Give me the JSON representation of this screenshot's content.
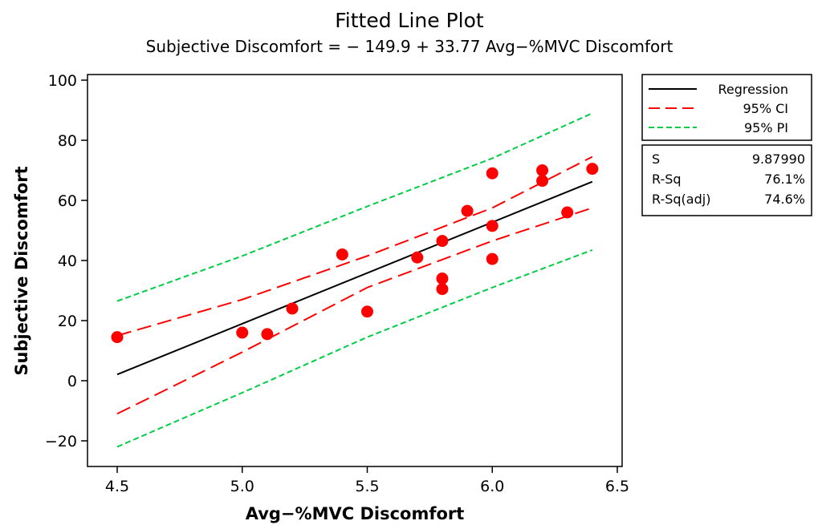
{
  "chart_data": {
    "type": "scatter",
    "title": "Fitted Line Plot",
    "subtitle": "Subjective Discomfort = − 149.9 + 33.77 Avg−%MVC Discomfort",
    "xlabel": "Avg−%MVC Discomfort",
    "ylabel": "Subjective Discomfort",
    "xlim": [
      4.45,
      6.5
    ],
    "ylim": [
      -29,
      101
    ],
    "xticks": [
      4.5,
      5.0,
      5.5,
      6.0,
      6.5
    ],
    "xtick_labels": [
      "4.5",
      "5.0",
      "5.5",
      "6.0",
      "6.5"
    ],
    "yticks": [
      -20,
      0,
      20,
      40,
      60,
      80,
      100
    ],
    "ytick_labels": [
      "−20",
      "0",
      "20",
      "40",
      "60",
      "80",
      "100"
    ],
    "grid": false,
    "legend_position": "right",
    "points": {
      "x": [
        4.5,
        5.0,
        5.1,
        5.2,
        5.4,
        5.5,
        5.7,
        5.8,
        5.8,
        5.8,
        5.9,
        6.0,
        6.0,
        6.0,
        6.2,
        6.2,
        6.3,
        6.4
      ],
      "y": [
        14.5,
        16,
        15.5,
        24,
        42,
        23,
        41,
        46.5,
        34,
        30.5,
        56.5,
        69,
        51.5,
        40.5,
        70,
        66.5,
        56,
        70.5
      ]
    },
    "series": [
      {
        "name": "Regression",
        "style": "solid",
        "color": "#000000",
        "x": [
          4.5,
          6.4
        ],
        "values": [
          2.07,
          66.23
        ]
      },
      {
        "name": "95% CI upper",
        "style": "dashed",
        "color": "#ff0000",
        "x": [
          4.5,
          5.0,
          5.5,
          6.0,
          6.4
        ],
        "values": [
          15.0,
          27.0,
          41.5,
          57.5,
          74.5
        ]
      },
      {
        "name": "95% CI lower",
        "style": "dashed",
        "color": "#ff0000",
        "x": [
          4.5,
          5.0,
          5.5,
          6.0,
          6.4
        ],
        "values": [
          -11.0,
          9.5,
          31.0,
          46.5,
          57.5
        ]
      },
      {
        "name": "95% PI upper",
        "style": "dashed",
        "color": "#00cc44",
        "x": [
          4.5,
          5.0,
          5.5,
          6.0,
          6.4
        ],
        "values": [
          26.5,
          41.5,
          58.0,
          74.0,
          89.0
        ]
      },
      {
        "name": "95% PI lower",
        "style": "dashed",
        "color": "#00cc44",
        "x": [
          4.5,
          5.0,
          5.5,
          6.0,
          6.4
        ],
        "values": [
          -22.0,
          -4.0,
          14.5,
          31.0,
          43.5
        ]
      }
    ],
    "point_color": "#ff0000",
    "legend": [
      {
        "label": "Regression",
        "style": "solid",
        "color": "#000000"
      },
      {
        "label": "95% CI",
        "style": "dashed",
        "color": "#ff0000"
      },
      {
        "label": "95% PI",
        "style": "dashed",
        "color": "#00cc44"
      }
    ],
    "stats": [
      {
        "label": "S",
        "value": "9.87990"
      },
      {
        "label": "R-Sq",
        "value": "76.1%"
      },
      {
        "label": "R-Sq(adj)",
        "value": "74.6%"
      }
    ]
  }
}
